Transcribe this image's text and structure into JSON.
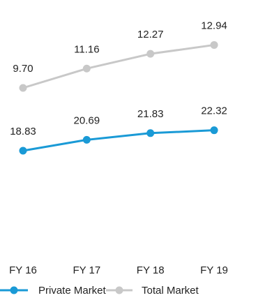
{
  "chart_data": {
    "type": "line",
    "categories": [
      "FY 16",
      "FY 17",
      "FY 18",
      "FY 19"
    ],
    "series": [
      {
        "name": "Private Market",
        "values": [
          18.83,
          20.69,
          21.83,
          22.32
        ],
        "labels": [
          "18.83",
          "20.69",
          "21.83",
          "22.32"
        ],
        "color": "#1a9ad6"
      },
      {
        "name": "Total Market",
        "values": [
          9.7,
          11.16,
          12.27,
          12.94
        ],
        "labels": [
          "9.70",
          "11.16",
          "12.27",
          "12.94"
        ],
        "color": "#c8c8c8"
      }
    ],
    "title": "",
    "xlabel": "",
    "ylabel": "",
    "grid": false,
    "legend": "bottom-left",
    "axes_visible": false
  }
}
